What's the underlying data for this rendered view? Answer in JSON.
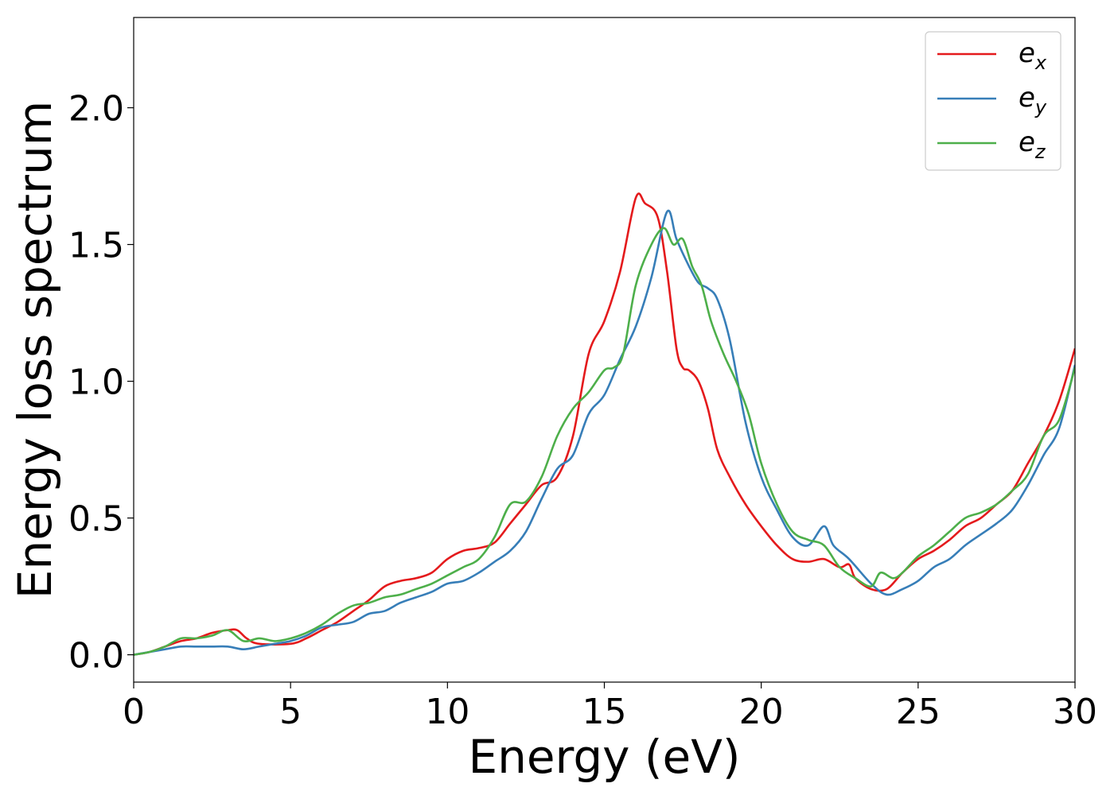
{
  "chart_data": {
    "type": "line",
    "xlabel": "Energy (eV)",
    "ylabel": "Energy loss spectrum",
    "xlim": [
      0,
      30
    ],
    "ylim": [
      -0.1,
      2.33
    ],
    "xticks": [
      0,
      5,
      10,
      15,
      20,
      25,
      30
    ],
    "yticks": [
      0.0,
      0.5,
      1.0,
      1.5,
      2.0
    ],
    "xtick_labels": [
      "0",
      "5",
      "10",
      "15",
      "20",
      "25",
      "30"
    ],
    "ytick_labels": [
      "0.0",
      "0.5",
      "1.0",
      "1.5",
      "2.0"
    ],
    "grid": false,
    "legend_position": "top-right",
    "series": [
      {
        "name": "e_x",
        "label_main": "e",
        "label_sub": "x",
        "color": "#e41a1c",
        "x": [
          0,
          0.5,
          1,
          1.5,
          2,
          2.5,
          3,
          3.3,
          3.6,
          4,
          5,
          5.5,
          6,
          6.5,
          7,
          7.5,
          8,
          8.5,
          9,
          9.5,
          10,
          10.5,
          11,
          11.5,
          12,
          12.5,
          13,
          13.5,
          14,
          14.5,
          15,
          15.5,
          16,
          16.3,
          16.7,
          17,
          17.3,
          17.5,
          17.7,
          18,
          18.3,
          18.6,
          19,
          19.5,
          20,
          20.5,
          21,
          21.5,
          22,
          22.5,
          22.8,
          23,
          23.5,
          24,
          24.5,
          25,
          25.5,
          26,
          26.5,
          27,
          27.5,
          28,
          28.5,
          29,
          29.5,
          30
        ],
        "y": [
          0.0,
          0.01,
          0.03,
          0.05,
          0.06,
          0.08,
          0.09,
          0.09,
          0.06,
          0.04,
          0.04,
          0.06,
          0.09,
          0.12,
          0.16,
          0.2,
          0.25,
          0.27,
          0.28,
          0.3,
          0.35,
          0.38,
          0.39,
          0.41,
          0.48,
          0.55,
          0.62,
          0.65,
          0.8,
          1.1,
          1.22,
          1.4,
          1.67,
          1.65,
          1.6,
          1.4,
          1.12,
          1.05,
          1.04,
          1.0,
          0.9,
          0.75,
          0.65,
          0.55,
          0.47,
          0.4,
          0.35,
          0.34,
          0.35,
          0.32,
          0.33,
          0.28,
          0.24,
          0.24,
          0.3,
          0.35,
          0.38,
          0.42,
          0.47,
          0.5,
          0.55,
          0.6,
          0.7,
          0.8,
          0.93,
          1.12
        ]
      },
      {
        "name": "e_y",
        "label_main": "e",
        "label_sub": "y",
        "color": "#377eb8",
        "x": [
          0,
          0.5,
          1,
          1.5,
          2,
          2.5,
          3,
          3.5,
          4,
          4.5,
          5,
          5.5,
          6,
          6.5,
          7,
          7.5,
          8,
          8.5,
          9,
          9.5,
          10,
          10.5,
          11,
          11.5,
          12,
          12.5,
          13,
          13.5,
          14,
          14.5,
          15,
          15.5,
          16,
          16.5,
          17,
          17.3,
          17.7,
          18,
          18.3,
          18.6,
          19,
          19.5,
          20,
          20.5,
          21,
          21.5,
          22,
          22.3,
          22.8,
          23.5,
          24,
          24.5,
          25,
          25.5,
          26,
          26.5,
          27,
          27.5,
          28,
          28.5,
          29,
          29.5,
          30
        ],
        "y": [
          0.0,
          0.01,
          0.02,
          0.03,
          0.03,
          0.03,
          0.03,
          0.02,
          0.03,
          0.04,
          0.05,
          0.07,
          0.1,
          0.11,
          0.12,
          0.15,
          0.16,
          0.19,
          0.21,
          0.23,
          0.26,
          0.27,
          0.3,
          0.34,
          0.38,
          0.45,
          0.57,
          0.68,
          0.73,
          0.88,
          0.95,
          1.08,
          1.2,
          1.38,
          1.62,
          1.52,
          1.42,
          1.36,
          1.34,
          1.3,
          1.15,
          0.85,
          0.65,
          0.53,
          0.43,
          0.4,
          0.47,
          0.4,
          0.35,
          0.26,
          0.22,
          0.24,
          0.27,
          0.32,
          0.35,
          0.4,
          0.44,
          0.48,
          0.53,
          0.62,
          0.73,
          0.83,
          1.06
        ]
      },
      {
        "name": "e_z",
        "label_main": "e",
        "label_sub": "z",
        "color": "#4daf4a",
        "x": [
          0,
          0.5,
          1,
          1.5,
          2,
          2.5,
          3,
          3.5,
          4,
          4.5,
          5,
          5.5,
          6,
          6.5,
          7,
          7.5,
          8,
          8.5,
          9,
          9.5,
          10,
          10.5,
          11,
          11.5,
          12,
          12.5,
          13,
          13.5,
          14,
          14.5,
          15,
          15.3,
          15.6,
          16,
          16.5,
          16.9,
          17.2,
          17.5,
          17.8,
          18.1,
          18.4,
          18.8,
          19.2,
          19.6,
          20,
          20.5,
          21,
          21.5,
          22,
          22.5,
          23,
          23.5,
          23.8,
          24.2,
          24.5,
          25,
          25.5,
          26,
          26.5,
          27,
          27.5,
          28,
          28.5,
          29,
          29.5,
          30
        ],
        "y": [
          0.0,
          0.01,
          0.03,
          0.06,
          0.06,
          0.07,
          0.09,
          0.05,
          0.06,
          0.05,
          0.06,
          0.08,
          0.11,
          0.15,
          0.18,
          0.19,
          0.21,
          0.22,
          0.24,
          0.26,
          0.29,
          0.32,
          0.35,
          0.43,
          0.55,
          0.56,
          0.65,
          0.8,
          0.9,
          0.96,
          1.04,
          1.05,
          1.1,
          1.35,
          1.5,
          1.56,
          1.5,
          1.52,
          1.42,
          1.35,
          1.22,
          1.1,
          1.0,
          0.88,
          0.7,
          0.55,
          0.45,
          0.42,
          0.4,
          0.32,
          0.28,
          0.25,
          0.3,
          0.28,
          0.3,
          0.36,
          0.4,
          0.45,
          0.5,
          0.52,
          0.55,
          0.6,
          0.66,
          0.8,
          0.86,
          1.05
        ]
      }
    ]
  }
}
